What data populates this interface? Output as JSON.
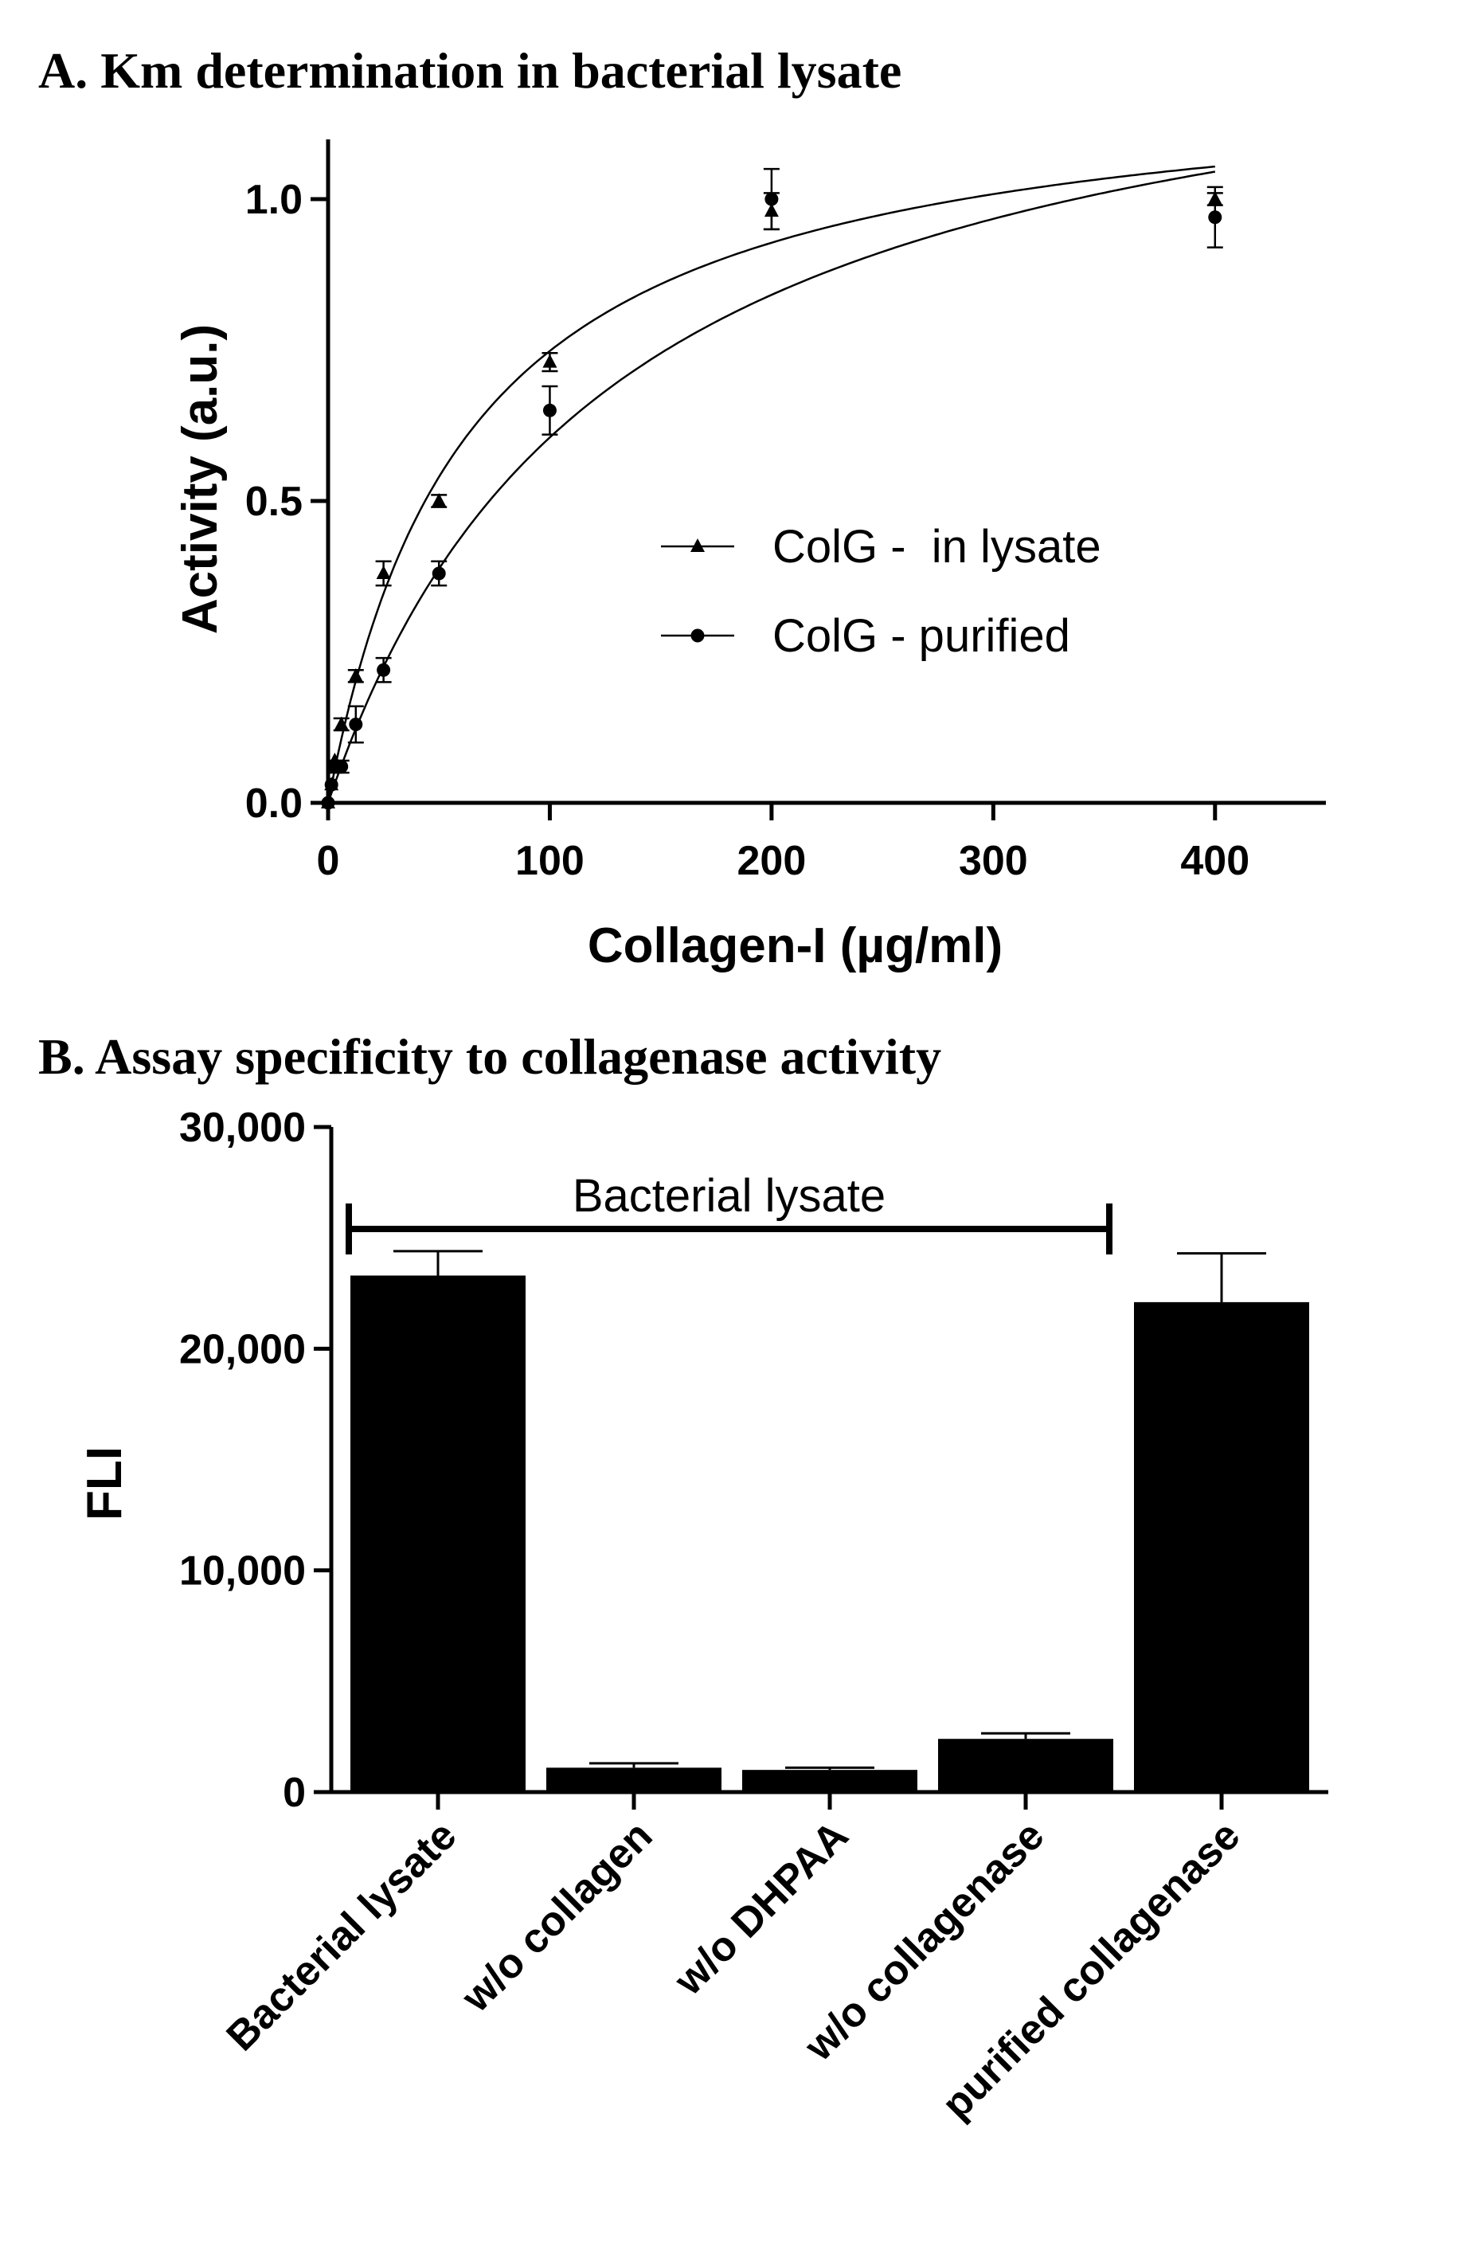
{
  "chart_data": [
    {
      "type": "scatter",
      "title": "A. Km determination in bacterial lysate",
      "xlabel": "Collagen-I (µg/ml)",
      "ylabel": "Activity (a.u.)",
      "xlim": [
        0,
        450
      ],
      "ylim": [
        0,
        1.1
      ],
      "x_ticks": [
        {
          "value": 0,
          "label": "0"
        },
        {
          "value": 100,
          "label": "100"
        },
        {
          "value": 200,
          "label": "200"
        },
        {
          "value": 300,
          "label": "300"
        },
        {
          "value": 400,
          "label": "400"
        }
      ],
      "y_ticks": [
        {
          "value": 0,
          "label": "0.0"
        },
        {
          "value": 0.5,
          "label": "0.5"
        },
        {
          "value": 1.0,
          "label": "1.0"
        }
      ],
      "grid": false,
      "legend_position": "center-right",
      "series": [
        {
          "name": "ColG -  in lysate",
          "marker": "triangle",
          "fit_curve": "michaelis-menten",
          "points": [
            {
              "x": 0,
              "y": 0.0,
              "err": 0.0
            },
            {
              "x": 1.5,
              "y": 0.03,
              "err": 0.0
            },
            {
              "x": 3,
              "y": 0.07,
              "err": 0.0
            },
            {
              "x": 6,
              "y": 0.13,
              "err": 0.01
            },
            {
              "x": 12.5,
              "y": 0.21,
              "err": 0.01
            },
            {
              "x": 25,
              "y": 0.38,
              "err": 0.02
            },
            {
              "x": 50,
              "y": 0.5,
              "err": 0.01
            },
            {
              "x": 100,
              "y": 0.73,
              "err": 0.015
            },
            {
              "x": 200,
              "y": 0.98,
              "err": 0.03
            },
            {
              "x": 400,
              "y": 1.0,
              "err": 0.01
            }
          ]
        },
        {
          "name": "ColG - purified",
          "marker": "circle",
          "fit_curve": "michaelis-menten",
          "points": [
            {
              "x": 0,
              "y": 0.0,
              "err": 0.0
            },
            {
              "x": 1.5,
              "y": 0.03,
              "err": 0.0
            },
            {
              "x": 3,
              "y": 0.06,
              "err": 0.01
            },
            {
              "x": 6,
              "y": 0.06,
              "err": 0.01
            },
            {
              "x": 12.5,
              "y": 0.13,
              "err": 0.03
            },
            {
              "x": 25,
              "y": 0.22,
              "err": 0.02
            },
            {
              "x": 50,
              "y": 0.38,
              "err": 0.02
            },
            {
              "x": 100,
              "y": 0.65,
              "err": 0.04
            },
            {
              "x": 200,
              "y": 1.0,
              "err": 0.05
            },
            {
              "x": 400,
              "y": 0.97,
              "err": 0.05
            }
          ]
        }
      ]
    },
    {
      "type": "bar",
      "title": "B. Assay specificity to collagenase activity",
      "xlabel": "",
      "ylabel": "FLI",
      "ylim": [
        0,
        30000
      ],
      "y_ticks": [
        {
          "value": 0,
          "label": "0"
        },
        {
          "value": 10000,
          "label": "10,000"
        },
        {
          "value": 20000,
          "label": "20,000"
        },
        {
          "value": 30000,
          "label": "30,000"
        }
      ],
      "categories": [
        "Bacterial lysate",
        "w/o collagen",
        "w/o DHPAA",
        "w/o collagenase",
        "purified collagenase"
      ],
      "values": [
        23300,
        1100,
        1000,
        2400,
        22100
      ],
      "errors": [
        1100,
        200,
        100,
        250,
        2200
      ],
      "bar_color": "#000000",
      "grid": false,
      "annotation": {
        "text": "Bacterial lysate",
        "span_from": "Bacterial lysate",
        "span_to": "w/o collagenase",
        "level": 25400
      }
    }
  ]
}
